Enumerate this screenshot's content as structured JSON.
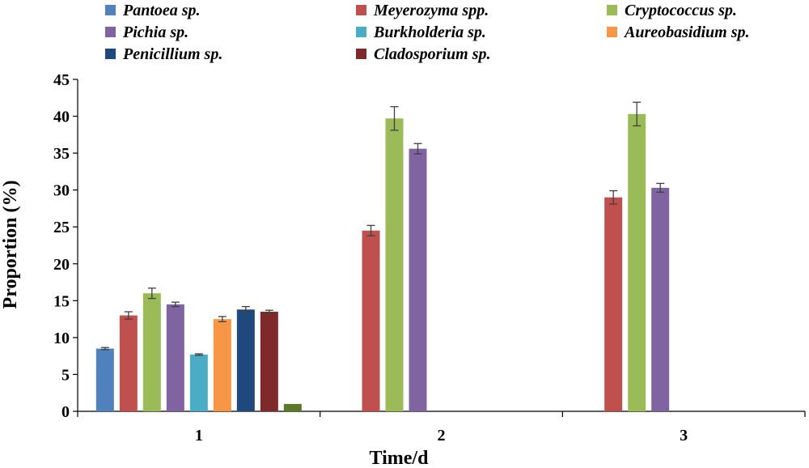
{
  "chart_data": {
    "type": "bar",
    "title": "",
    "xlabel": "Time/d",
    "ylabel": "Proportion (%)",
    "ylim": [
      0,
      45
    ],
    "yticks": [
      "0",
      "5",
      "10",
      "15",
      "20",
      "25",
      "30",
      "35",
      "40",
      "45"
    ],
    "categories": [
      "1",
      "2",
      "3"
    ],
    "grid": false,
    "legend_position": "top",
    "series": [
      {
        "name": "Pantoea sp.",
        "color": "#4f81bd",
        "values": [
          8.5,
          null,
          null
        ],
        "errors": [
          0.15,
          null,
          null
        ]
      },
      {
        "name": "Meyerozyma spp.",
        "color": "#c0504d",
        "values": [
          13.0,
          24.5,
          29.0
        ],
        "errors": [
          0.5,
          0.7,
          0.9
        ]
      },
      {
        "name": "Cryptococcus sp.",
        "color": "#9bbb59",
        "values": [
          16.0,
          39.7,
          40.3
        ],
        "errors": [
          0.7,
          1.6,
          1.6
        ]
      },
      {
        "name": "Pichia sp.",
        "color": "#8064a2",
        "values": [
          14.5,
          35.6,
          30.3
        ],
        "errors": [
          0.3,
          0.7,
          0.6
        ]
      },
      {
        "name": "Burkholderia sp.",
        "color": "#4bacc6",
        "values": [
          7.7,
          null,
          null
        ],
        "errors": [
          0.1,
          null,
          null
        ]
      },
      {
        "name": "Aureobasidium sp.",
        "color": "#f79646",
        "values": [
          12.5,
          null,
          null
        ],
        "errors": [
          0.35,
          null,
          null
        ]
      },
      {
        "name": "Penicillium sp.",
        "color": "#1f497d",
        "values": [
          13.8,
          null,
          null
        ],
        "errors": [
          0.4,
          null,
          null
        ]
      },
      {
        "name": "Cladosporium sp.",
        "color": "#7f2a2a",
        "values": [
          13.5,
          null,
          null
        ],
        "errors": [
          0.2,
          null,
          null
        ]
      },
      {
        "name": "",
        "color": "#5a7a2a",
        "values": [
          1.0,
          null,
          null
        ],
        "errors": [
          null,
          null,
          null
        ]
      }
    ]
  }
}
